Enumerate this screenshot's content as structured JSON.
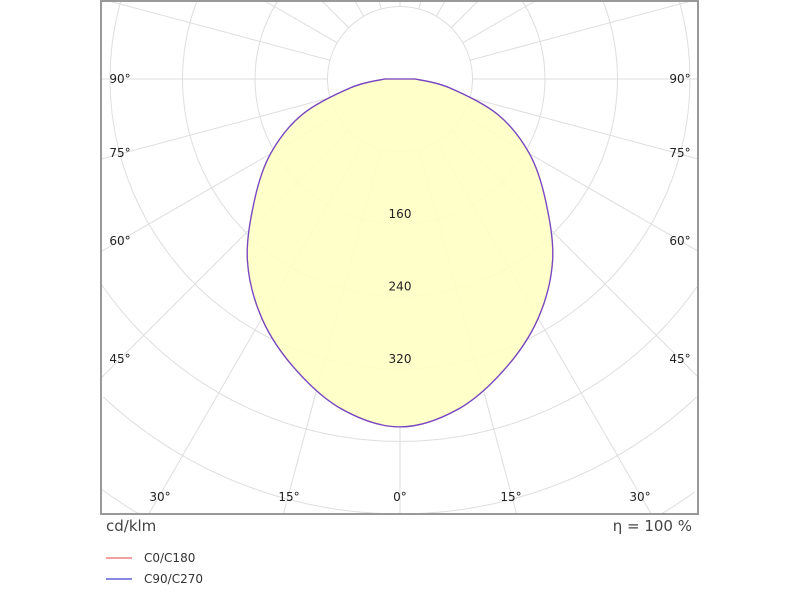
{
  "chart_data": {
    "type": "polar",
    "unit_label": "cd/klm",
    "efficiency_label": "η = 100 %",
    "radial_tick_labels": [
      "160",
      "240",
      "320"
    ],
    "radial_ticks": [
      80,
      160,
      240,
      320,
      400,
      480,
      560,
      640
    ],
    "angle_labels_bottom": [
      "30°",
      "15°",
      "0°",
      "15°",
      "30°"
    ],
    "angle_labels_side": [
      "90°",
      "75°",
      "60°",
      "45°"
    ],
    "grid": true,
    "fill_color": "#ffffc4",
    "series": [
      {
        "name": "C0/C180",
        "color": "#f2a0a0",
        "angles": [
          0,
          10,
          20,
          30,
          40,
          50,
          60,
          70,
          80,
          90
        ],
        "values": [
          384,
          370,
          340,
          305,
          262,
          210,
          165,
          115,
          55,
          17
        ]
      },
      {
        "name": "C90/C270",
        "color": "#8888e0",
        "angles": [
          0,
          10,
          20,
          30,
          40,
          50,
          60,
          70,
          80,
          90
        ],
        "values": [
          384,
          370,
          340,
          305,
          262,
          210,
          165,
          115,
          55,
          17
        ]
      }
    ],
    "curve_color": "#7448c4"
  }
}
